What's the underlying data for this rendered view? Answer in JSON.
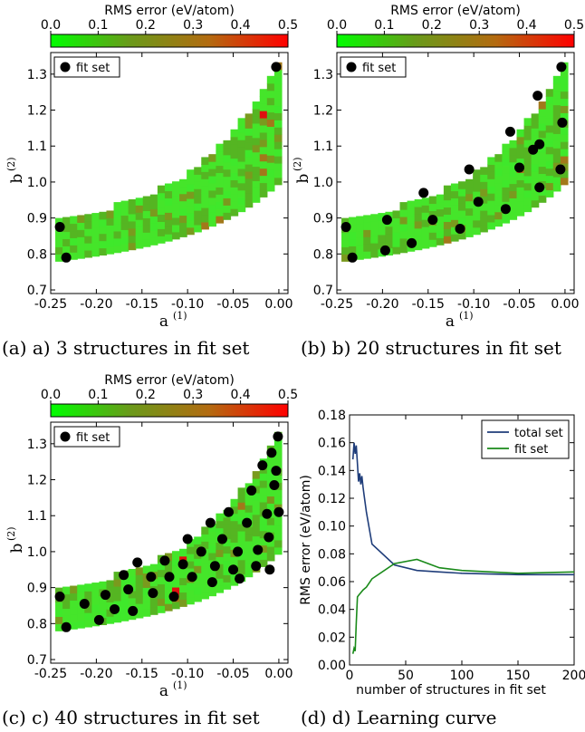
{
  "colorbar": {
    "title": "RMS error (eV/atom)",
    "ticks": [
      "0.0",
      "0.1",
      "0.2",
      "0.3",
      "0.4",
      "0.5"
    ],
    "colors": [
      "#00ff00",
      "#6a9a1a",
      "#b36b10",
      "#ff0000"
    ]
  },
  "region_color": "#45e52a",
  "dot_color": "#000000",
  "caption_a": "(a) a) 3 structures in fit set",
  "caption_b": "(b) b) 20 structures in fit set",
  "caption_c": "(c) c) 40 structures in fit set",
  "caption_d": "(d) d) Learning curve",
  "chart_data": [
    {
      "type": "heatmap",
      "title": "",
      "xlabel": "a",
      "xlabel_sup": "(1)",
      "ylabel": "b",
      "ylabel_sup": "(2)",
      "xlim": [
        -0.25,
        0.01
      ],
      "ylim": [
        0.69,
        1.36
      ],
      "xticks": [
        "-0.25",
        "-0.20",
        "-0.15",
        "-0.10",
        "-0.05",
        "0.00"
      ],
      "yticks": [
        "0.7",
        "0.8",
        "0.9",
        "1.0",
        "1.1",
        "1.2",
        "1.3"
      ],
      "legend": "fit set",
      "fit_points": [
        [
          -0.24,
          0.875
        ],
        [
          -0.233,
          0.79
        ],
        [
          -0.003,
          1.32
        ]
      ]
    },
    {
      "type": "heatmap",
      "title": "",
      "xlabel": "a",
      "xlabel_sup": "(1)",
      "ylabel": "b",
      "ylabel_sup": "(2)",
      "xlim": [
        -0.25,
        0.01
      ],
      "ylim": [
        0.69,
        1.36
      ],
      "xticks": [
        "-0.25",
        "-0.20",
        "-0.15",
        "-0.10",
        "-0.05",
        "0.00"
      ],
      "yticks": [
        "0.7",
        "0.8",
        "0.9",
        "1.0",
        "1.1",
        "1.2",
        "1.3"
      ],
      "legend": "fit set",
      "fit_points": [
        [
          -0.24,
          0.875
        ],
        [
          -0.233,
          0.79
        ],
        [
          -0.195,
          0.895
        ],
        [
          -0.197,
          0.81
        ],
        [
          -0.168,
          0.83
        ],
        [
          -0.155,
          0.97
        ],
        [
          -0.145,
          0.895
        ],
        [
          -0.115,
          0.87
        ],
        [
          -0.105,
          1.035
        ],
        [
          -0.095,
          0.945
        ],
        [
          -0.065,
          0.925
        ],
        [
          -0.06,
          1.14
        ],
        [
          -0.05,
          1.04
        ],
        [
          -0.03,
          1.24
        ],
        [
          -0.028,
          1.105
        ],
        [
          -0.028,
          0.985
        ],
        [
          -0.005,
          1.035
        ],
        [
          -0.003,
          1.165
        ],
        [
          -0.004,
          1.32
        ],
        [
          -0.035,
          1.09
        ]
      ]
    },
    {
      "type": "heatmap",
      "title": "",
      "xlabel": "a",
      "xlabel_sup": "(1)",
      "ylabel": "b",
      "ylabel_sup": "(2)",
      "xlim": [
        -0.25,
        0.01
      ],
      "ylim": [
        0.69,
        1.36
      ],
      "xticks": [
        "-0.25",
        "-0.20",
        "-0.15",
        "-0.10",
        "-0.05",
        "0.00"
      ],
      "yticks": [
        "0.7",
        "0.8",
        "0.9",
        "1.0",
        "1.1",
        "1.2",
        "1.3"
      ],
      "legend": "fit set",
      "fit_points": [
        [
          -0.24,
          0.875
        ],
        [
          -0.233,
          0.79
        ],
        [
          -0.213,
          0.855
        ],
        [
          -0.197,
          0.81
        ],
        [
          -0.19,
          0.88
        ],
        [
          -0.18,
          0.84
        ],
        [
          -0.17,
          0.935
        ],
        [
          -0.165,
          0.895
        ],
        [
          -0.16,
          0.835
        ],
        [
          -0.155,
          0.97
        ],
        [
          -0.14,
          0.93
        ],
        [
          -0.138,
          0.885
        ],
        [
          -0.125,
          0.975
        ],
        [
          -0.12,
          0.93
        ],
        [
          -0.115,
          0.875
        ],
        [
          -0.105,
          0.965
        ],
        [
          -0.1,
          1.035
        ],
        [
          -0.095,
          0.93
        ],
        [
          -0.085,
          1.0
        ],
        [
          -0.075,
          1.08
        ],
        [
          -0.073,
          0.915
        ],
        [
          -0.07,
          0.96
        ],
        [
          -0.062,
          1.035
        ],
        [
          -0.055,
          1.11
        ],
        [
          -0.05,
          0.95
        ],
        [
          -0.045,
          1.0
        ],
        [
          -0.043,
          0.925
        ],
        [
          -0.035,
          1.08
        ],
        [
          -0.03,
          1.17
        ],
        [
          -0.025,
          0.96
        ],
        [
          -0.023,
          1.005
        ],
        [
          -0.018,
          1.24
        ],
        [
          -0.013,
          1.105
        ],
        [
          -0.011,
          1.04
        ],
        [
          -0.01,
          0.95
        ],
        [
          -0.008,
          1.275
        ],
        [
          -0.005,
          1.185
        ],
        [
          -0.003,
          1.225
        ],
        [
          0.0,
          1.11
        ],
        [
          -0.001,
          1.32
        ]
      ]
    },
    {
      "type": "line",
      "title": "",
      "xlabel": "number of structures in fit set",
      "ylabel": "RMS error (eV/atom)",
      "xlim": [
        0,
        200
      ],
      "ylim": [
        0,
        0.18
      ],
      "xticks": [
        "0",
        "50",
        "100",
        "150",
        "200"
      ],
      "yticks": [
        "0.00",
        "0.02",
        "0.04",
        "0.06",
        "0.08",
        "0.10",
        "0.12",
        "0.14",
        "0.16",
        "0.18"
      ],
      "legend_position": "top-right",
      "series": [
        {
          "name": "total set",
          "color": "#1f3d7a",
          "x": [
            3,
            4,
            5,
            6,
            7,
            8,
            9,
            10,
            11,
            12,
            13,
            15,
            20,
            40,
            60,
            80,
            100,
            150,
            200
          ],
          "y": [
            0.148,
            0.16,
            0.152,
            0.158,
            0.145,
            0.132,
            0.138,
            0.13,
            0.136,
            0.128,
            0.122,
            0.11,
            0.087,
            0.072,
            0.068,
            0.067,
            0.066,
            0.065,
            0.065
          ]
        },
        {
          "name": "fit set",
          "color": "#1a8a1a",
          "x": [
            3,
            4,
            5,
            6,
            7,
            8,
            10,
            12,
            15,
            20,
            40,
            60,
            80,
            100,
            150,
            200
          ],
          "y": [
            0.008,
            0.012,
            0.01,
            0.03,
            0.049,
            0.05,
            0.052,
            0.054,
            0.056,
            0.062,
            0.073,
            0.076,
            0.07,
            0.068,
            0.066,
            0.067
          ]
        }
      ]
    }
  ]
}
